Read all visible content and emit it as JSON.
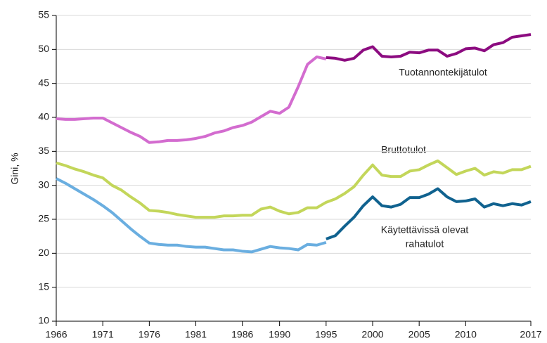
{
  "chart_data": {
    "type": "line",
    "ylabel": "Gini, %",
    "x": [
      1966,
      1967,
      1968,
      1969,
      1970,
      1971,
      1972,
      1973,
      1974,
      1975,
      1976,
      1977,
      1978,
      1979,
      1980,
      1981,
      1982,
      1983,
      1984,
      1985,
      1986,
      1987,
      1988,
      1989,
      1990,
      1991,
      1992,
      1993,
      1994,
      1995,
      1996,
      1997,
      1998,
      1999,
      2000,
      2001,
      2002,
      2003,
      2004,
      2005,
      2006,
      2007,
      2008,
      2009,
      2010,
      2011,
      2012,
      2013,
      2014,
      2015,
      2016,
      2017
    ],
    "xlim": [
      1966,
      2017
    ],
    "xticks": [
      1966,
      1971,
      1976,
      1981,
      1986,
      1990,
      1995,
      2000,
      2005,
      2010,
      2017
    ],
    "ylim": [
      10,
      55
    ],
    "yticks": [
      10,
      15,
      20,
      25,
      30,
      35,
      40,
      45,
      50,
      55
    ],
    "grid": true,
    "series": [
      {
        "color": "#d36ccf",
        "values": [
          39.8,
          39.7,
          39.7,
          39.8,
          39.9,
          39.9,
          39.2,
          38.5,
          37.8,
          37.2,
          36.3,
          36.4,
          36.6,
          36.6,
          36.7,
          36.9,
          37.2,
          37.7,
          38.0,
          38.5,
          38.8,
          39.3,
          40.1,
          40.9,
          40.6,
          41.5,
          44.5,
          47.8,
          48.9,
          48.6,
          null,
          null,
          null,
          null,
          null,
          null,
          null,
          null,
          null,
          null,
          null,
          null,
          null,
          null,
          null,
          null,
          null,
          null,
          null,
          null,
          null,
          null
        ]
      },
      {
        "color": "#8c0b80",
        "values": [
          null,
          null,
          null,
          null,
          null,
          null,
          null,
          null,
          null,
          null,
          null,
          null,
          null,
          null,
          null,
          null,
          null,
          null,
          null,
          null,
          null,
          null,
          null,
          null,
          null,
          null,
          null,
          null,
          null,
          48.8,
          48.7,
          48.4,
          48.7,
          49.9,
          50.4,
          49.0,
          48.9,
          49.0,
          49.6,
          49.5,
          49.9,
          49.9,
          49.0,
          49.4,
          50.1,
          50.2,
          49.8,
          50.7,
          51.0,
          51.8,
          52.0,
          52.2
        ]
      },
      {
        "color": "#c3d65a",
        "values": [
          33.3,
          32.9,
          32.4,
          32.0,
          31.5,
          31.1,
          30.0,
          29.3,
          28.3,
          27.4,
          26.3,
          26.2,
          26.0,
          25.7,
          25.5,
          25.3,
          25.3,
          25.3,
          25.5,
          25.5,
          25.6,
          25.6,
          26.5,
          26.8,
          26.2,
          25.8,
          26.0,
          26.7,
          26.7,
          27.5,
          28.0,
          28.8,
          29.8,
          31.5,
          33.0,
          31.5,
          31.3,
          31.3,
          32.1,
          32.3,
          33.0,
          33.6,
          32.6,
          31.6,
          32.1,
          32.5,
          31.5,
          32.0,
          31.8,
          32.3,
          32.3,
          32.8
        ]
      },
      {
        "color": "#6aaee0",
        "values": [
          31.0,
          30.3,
          29.5,
          28.7,
          27.9,
          27.0,
          26.0,
          24.8,
          23.6,
          22.5,
          21.5,
          21.3,
          21.2,
          21.2,
          21.0,
          20.9,
          20.9,
          20.7,
          20.5,
          20.5,
          20.3,
          20.2,
          20.6,
          21.0,
          20.8,
          20.7,
          20.5,
          21.3,
          21.2,
          21.6,
          null,
          null,
          null,
          null,
          null,
          null,
          null,
          null,
          null,
          null,
          null,
          null,
          null,
          null,
          null,
          null,
          null,
          null,
          null,
          null,
          null,
          null
        ]
      },
      {
        "color": "#10628f",
        "values": [
          null,
          null,
          null,
          null,
          null,
          null,
          null,
          null,
          null,
          null,
          null,
          null,
          null,
          null,
          null,
          null,
          null,
          null,
          null,
          null,
          null,
          null,
          null,
          null,
          null,
          null,
          null,
          null,
          null,
          22.1,
          22.6,
          24.0,
          25.3,
          27.0,
          28.3,
          27.0,
          26.8,
          27.2,
          28.2,
          28.2,
          28.7,
          29.5,
          28.3,
          27.6,
          27.7,
          28.0,
          26.8,
          27.3,
          27.0,
          27.3,
          27.1,
          27.6
        ]
      }
    ],
    "annotations": [
      "Tuotannontekijätulot",
      "Bruttotulot",
      "Käytettävissä olevat",
      "rahatulot"
    ]
  }
}
